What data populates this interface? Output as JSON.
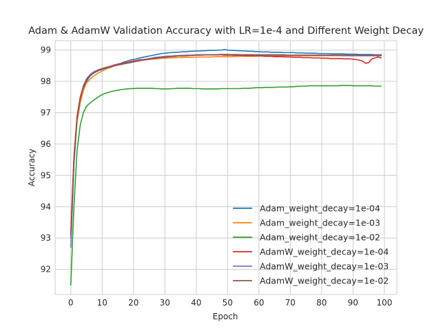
{
  "chart_data": {
    "type": "line",
    "title": "Adam & AdamW Validation Accuracy with LR=1e-4 and Different Weight Decay",
    "xlabel": "Epoch",
    "ylabel": "Accuracy",
    "xlim": [
      -5,
      104
    ],
    "ylim": [
      91.2,
      99.3
    ],
    "xticks": [
      0,
      10,
      20,
      30,
      40,
      50,
      60,
      70,
      80,
      90,
      100
    ],
    "yticks": [
      92,
      93,
      94,
      95,
      96,
      97,
      98,
      99
    ],
    "grid": true,
    "legend_position": "lower-right",
    "x": [
      0,
      1,
      2,
      3,
      4,
      5,
      6,
      7,
      8,
      9,
      10,
      11,
      12,
      13,
      14,
      15,
      16,
      17,
      18,
      19,
      20,
      21,
      22,
      23,
      24,
      25,
      26,
      27,
      28,
      29,
      30,
      31,
      32,
      33,
      34,
      35,
      36,
      37,
      38,
      39,
      40,
      41,
      42,
      43,
      44,
      45,
      46,
      47,
      48,
      49,
      50,
      51,
      52,
      53,
      54,
      55,
      56,
      57,
      58,
      59,
      60,
      61,
      62,
      63,
      64,
      65,
      66,
      67,
      68,
      69,
      70,
      71,
      72,
      73,
      74,
      75,
      76,
      77,
      78,
      79,
      80,
      81,
      82,
      83,
      84,
      85,
      86,
      87,
      88,
      89,
      90,
      91,
      92,
      93,
      94,
      95,
      96,
      97,
      98,
      99
    ],
    "series": [
      {
        "name": "Adam_weight_decay=1e-04",
        "color": "#1f77b4",
        "values": [
          93.0,
          95.5,
          96.8,
          97.4,
          97.8,
          98.0,
          98.15,
          98.25,
          98.3,
          98.35,
          98.38,
          98.42,
          98.45,
          98.48,
          98.52,
          98.55,
          98.58,
          98.62,
          98.65,
          98.68,
          98.7,
          98.72,
          98.75,
          98.77,
          98.79,
          98.81,
          98.83,
          98.85,
          98.87,
          98.89,
          98.9,
          98.91,
          98.92,
          98.93,
          98.93,
          98.94,
          98.95,
          98.95,
          98.96,
          98.96,
          98.97,
          98.97,
          98.98,
          98.98,
          98.99,
          98.99,
          98.99,
          99.0,
          99.0,
          99.02,
          99.0,
          98.99,
          98.99,
          98.98,
          98.98,
          98.97,
          98.97,
          98.96,
          98.96,
          98.95,
          98.95,
          98.94,
          98.94,
          98.94,
          98.93,
          98.93,
          98.93,
          98.93,
          98.92,
          98.92,
          98.92,
          98.92,
          98.91,
          98.91,
          98.91,
          98.9,
          98.9,
          98.9,
          98.9,
          98.89,
          98.89,
          98.89,
          98.89,
          98.88,
          98.88,
          98.88,
          98.88,
          98.88,
          98.87,
          98.87,
          98.87,
          98.87,
          98.86,
          98.86,
          98.86,
          98.86,
          98.86,
          98.85,
          98.85,
          98.85
        ]
      },
      {
        "name": "Adam_weight_decay=1e-03",
        "color": "#ff7f0e",
        "values": [
          93.1,
          95.4,
          96.7,
          97.3,
          97.7,
          97.95,
          98.05,
          98.15,
          98.22,
          98.28,
          98.33,
          98.38,
          98.42,
          98.46,
          98.5,
          98.53,
          98.56,
          98.59,
          98.61,
          98.63,
          98.65,
          98.66,
          98.67,
          98.68,
          98.69,
          98.7,
          98.71,
          98.72,
          98.73,
          98.74,
          98.74,
          98.75,
          98.75,
          98.76,
          98.76,
          98.76,
          98.77,
          98.77,
          98.77,
          98.77,
          98.78,
          98.78,
          98.78,
          98.78,
          98.78,
          98.78,
          98.79,
          98.79,
          98.79,
          98.79,
          98.79,
          98.79,
          98.79,
          98.8,
          98.8,
          98.8,
          98.8,
          98.8,
          98.8,
          98.8,
          98.81,
          98.81,
          98.81,
          98.81,
          98.81,
          98.81,
          98.81,
          98.81,
          98.81,
          98.82,
          98.82,
          98.82,
          98.82,
          98.82,
          98.82,
          98.82,
          98.82,
          98.82,
          98.82,
          98.82,
          98.82,
          98.82,
          98.82,
          98.82,
          98.82,
          98.82,
          98.82,
          98.82,
          98.82,
          98.82,
          98.82,
          98.82,
          98.82,
          98.82,
          98.82,
          98.82,
          98.82,
          98.82,
          98.82,
          98.82
        ]
      },
      {
        "name": "Adam_weight_decay=1e-02",
        "color": "#2ca02c",
        "values": [
          91.5,
          94.0,
          95.8,
          96.6,
          97.0,
          97.2,
          97.3,
          97.38,
          97.45,
          97.52,
          97.58,
          97.62,
          97.65,
          97.68,
          97.7,
          97.72,
          97.74,
          97.75,
          97.76,
          97.77,
          97.77,
          97.78,
          97.78,
          97.78,
          97.78,
          97.78,
          97.78,
          97.77,
          97.77,
          97.76,
          97.76,
          97.76,
          97.77,
          97.77,
          97.78,
          97.78,
          97.78,
          97.78,
          97.78,
          97.77,
          97.77,
          97.77,
          97.76,
          97.76,
          97.76,
          97.76,
          97.76,
          97.76,
          97.77,
          97.77,
          97.77,
          97.77,
          97.77,
          97.77,
          97.77,
          97.78,
          97.78,
          97.78,
          97.79,
          97.8,
          97.8,
          97.8,
          97.81,
          97.81,
          97.81,
          97.81,
          97.82,
          97.82,
          97.82,
          97.82,
          97.83,
          97.83,
          97.84,
          97.84,
          97.85,
          97.85,
          97.86,
          97.86,
          97.86,
          97.86,
          97.86,
          97.86,
          97.86,
          97.86,
          97.86,
          97.86,
          97.87,
          97.87,
          97.87,
          97.87,
          97.86,
          97.86,
          97.86,
          97.86,
          97.86,
          97.86,
          97.86,
          97.85,
          97.85,
          97.85
        ]
      },
      {
        "name": "AdamW_weight_decay=1e-04",
        "color": "#d62728",
        "values": [
          93.2,
          95.6,
          96.9,
          97.5,
          97.85,
          98.05,
          98.18,
          98.27,
          98.33,
          98.37,
          98.41,
          98.44,
          98.47,
          98.5,
          98.53,
          98.55,
          98.57,
          98.59,
          98.61,
          98.63,
          98.65,
          98.67,
          98.69,
          98.7,
          98.71,
          98.73,
          98.74,
          98.75,
          98.76,
          98.77,
          98.78,
          98.79,
          98.8,
          98.8,
          98.81,
          98.82,
          98.82,
          98.83,
          98.83,
          98.84,
          98.84,
          98.84,
          98.85,
          98.85,
          98.85,
          98.85,
          98.85,
          98.85,
          98.85,
          98.84,
          98.84,
          98.84,
          98.83,
          98.83,
          98.83,
          98.83,
          98.82,
          98.82,
          98.82,
          98.82,
          98.81,
          98.81,
          98.8,
          98.8,
          98.8,
          98.79,
          98.79,
          98.79,
          98.78,
          98.78,
          98.78,
          98.77,
          98.77,
          98.77,
          98.76,
          98.76,
          98.76,
          98.75,
          98.75,
          98.75,
          98.74,
          98.74,
          98.74,
          98.73,
          98.73,
          98.73,
          98.73,
          98.72,
          98.72,
          98.72,
          98.71,
          98.7,
          98.68,
          98.65,
          98.58,
          98.6,
          98.72,
          98.75,
          98.78,
          98.75
        ]
      },
      {
        "name": "AdamW_weight_decay=1e-03",
        "color": "#9467bd",
        "values": [
          92.7,
          95.3,
          96.8,
          97.45,
          97.85,
          98.08,
          98.2,
          98.29,
          98.34,
          98.38,
          98.41,
          98.44,
          98.46,
          98.49,
          98.51,
          98.53,
          98.55,
          98.57,
          98.59,
          98.61,
          98.63,
          98.65,
          98.67,
          98.69,
          98.71,
          98.73,
          98.75,
          98.77,
          98.78,
          98.79,
          98.8,
          98.81,
          98.81,
          98.82,
          98.82,
          98.83,
          98.83,
          98.84,
          98.84,
          98.84,
          98.85,
          98.85,
          98.85,
          98.85,
          98.85,
          98.85,
          98.85,
          98.86,
          98.86,
          98.86,
          98.86,
          98.85,
          98.85,
          98.85,
          98.85,
          98.85,
          98.85,
          98.85,
          98.85,
          98.84,
          98.84,
          98.84,
          98.84,
          98.84,
          98.84,
          98.84,
          98.84,
          98.84,
          98.83,
          98.83,
          98.83,
          98.83,
          98.83,
          98.83,
          98.83,
          98.83,
          98.83,
          98.83,
          98.83,
          98.83,
          98.83,
          98.83,
          98.83,
          98.83,
          98.83,
          98.83,
          98.83,
          98.82,
          98.82,
          98.82,
          98.82,
          98.82,
          98.82,
          98.82,
          98.82,
          98.82,
          98.82,
          98.82,
          98.82,
          98.82
        ]
      },
      {
        "name": "AdamW_weight_decay=1e-02",
        "color": "#8c564b",
        "values": [
          93.1,
          95.5,
          96.85,
          97.45,
          97.85,
          98.05,
          98.17,
          98.26,
          98.32,
          98.36,
          98.4,
          98.43,
          98.45,
          98.47,
          98.5,
          98.52,
          98.54,
          98.56,
          98.58,
          98.6,
          98.62,
          98.64,
          98.66,
          98.68,
          98.69,
          98.71,
          98.72,
          98.73,
          98.75,
          98.76,
          98.77,
          98.78,
          98.79,
          98.8,
          98.81,
          98.81,
          98.82,
          98.82,
          98.83,
          98.83,
          98.84,
          98.84,
          98.84,
          98.85,
          98.85,
          98.85,
          98.85,
          98.85,
          98.86,
          98.86,
          98.86,
          98.86,
          98.86,
          98.86,
          98.85,
          98.85,
          98.85,
          98.85,
          98.85,
          98.85,
          98.85,
          98.85,
          98.85,
          98.85,
          98.85,
          98.85,
          98.85,
          98.85,
          98.85,
          98.84,
          98.84,
          98.84,
          98.84,
          98.84,
          98.84,
          98.84,
          98.84,
          98.84,
          98.84,
          98.84,
          98.84,
          98.84,
          98.84,
          98.84,
          98.84,
          98.84,
          98.84,
          98.84,
          98.84,
          98.83,
          98.83,
          98.83,
          98.83,
          98.83,
          98.83,
          98.83,
          98.83,
          98.83,
          98.83,
          98.83
        ]
      }
    ]
  }
}
